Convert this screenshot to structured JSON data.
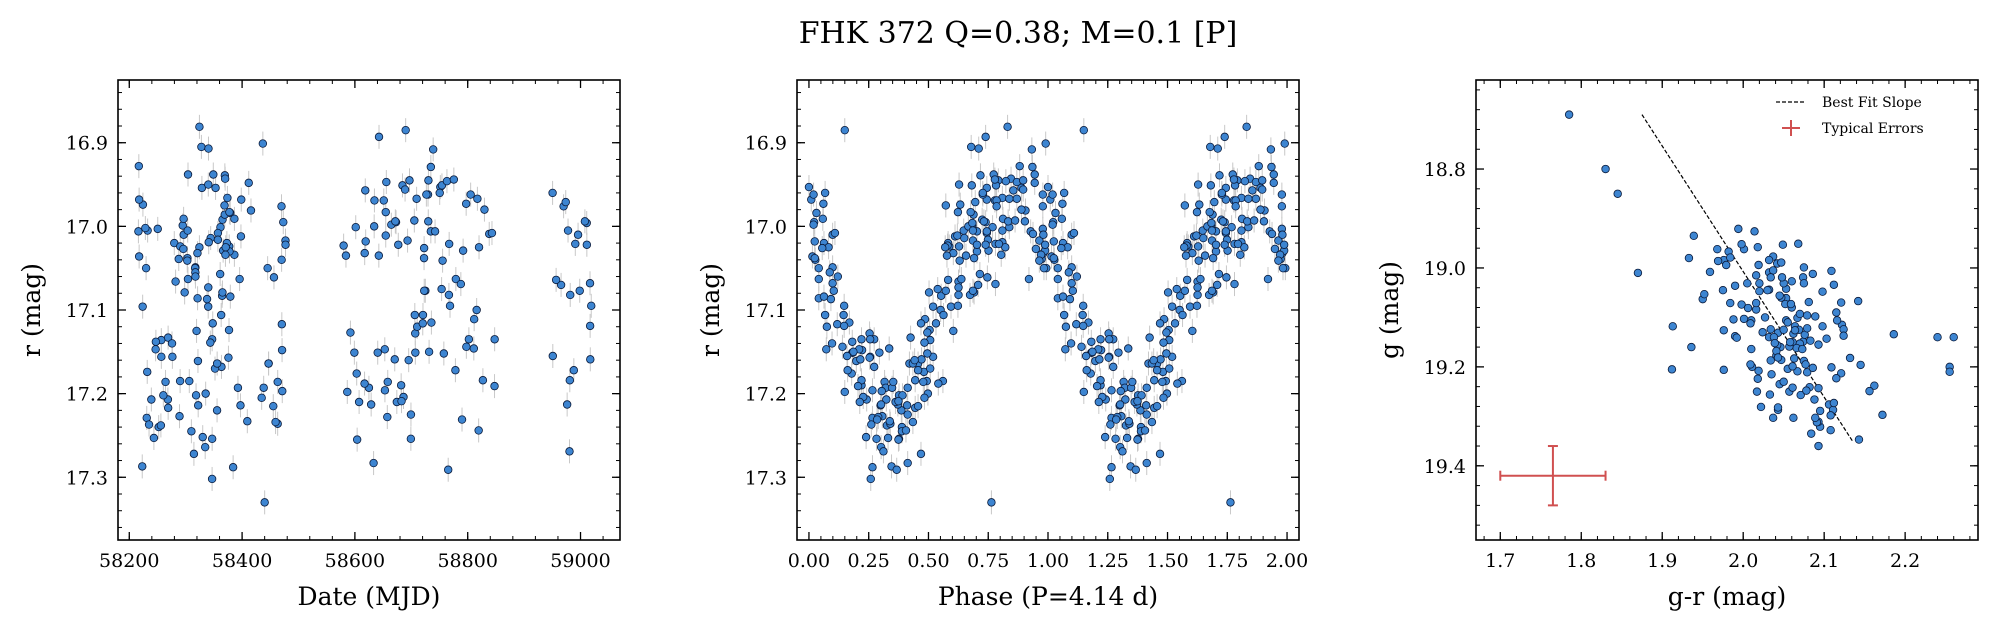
{
  "title": "FHK 372  Q=0.38; M=0.1 [P]",
  "colors": {
    "point_fill": "#3d85d1",
    "point_edge": "#0a1a3a",
    "errorbar": "#c8c8c8",
    "typical_error": "#d05050",
    "fit_line": "#000000"
  },
  "chart_data": [
    {
      "type": "scatter",
      "xlabel": "Date (MJD)",
      "ylabel": "r (mag)",
      "xlim": [
        58180,
        59070
      ],
      "ylim": [
        17.375,
        16.825
      ],
      "y_inverted": true,
      "xticks": [
        58200,
        58400,
        58600,
        58800,
        59000
      ],
      "xtick_labels": [
        "58200",
        "58400",
        "58600",
        "58800",
        "59000"
      ],
      "yticks": [
        16.9,
        17.0,
        17.1,
        17.2,
        17.3
      ],
      "ytick_labels": [
        "16.9",
        "17.0",
        "17.1",
        "17.2",
        "17.3"
      ],
      "series": [
        {
          "x": [],
          "y": []
        }
      ]
    },
    {
      "type": "scatter",
      "xlabel": "Phase (P=4.14 d)",
      "ylabel": "r (mag)",
      "xlim": [
        -0.05,
        2.05
      ],
      "ylim": [
        17.375,
        16.825
      ],
      "y_inverted": true,
      "xticks": [
        0.0,
        0.25,
        0.5,
        0.75,
        1.0,
        1.25,
        1.5,
        1.75,
        2.0
      ],
      "xtick_labels": [
        "0.00",
        "0.25",
        "0.50",
        "0.75",
        "1.00",
        "1.25",
        "1.50",
        "1.75",
        "2.00"
      ],
      "yticks": [
        16.9,
        17.0,
        17.1,
        17.2,
        17.3
      ],
      "ytick_labels": [
        "16.9",
        "17.0",
        "17.1",
        "17.2",
        "17.3"
      ],
      "period_days": 4.14,
      "series": [
        {
          "x": [],
          "y": []
        }
      ]
    },
    {
      "type": "scatter",
      "xlabel": "g-r (mag)",
      "ylabel": "g (mag)",
      "xlim": [
        1.67,
        2.29
      ],
      "ylim": [
        19.55,
        18.62
      ],
      "y_inverted": true,
      "xticks": [
        1.7,
        1.8,
        1.9,
        2.0,
        2.1,
        2.2
      ],
      "xtick_labels": [
        "1.7",
        "1.8",
        "1.9",
        "2.0",
        "2.1",
        "2.2"
      ],
      "yticks": [
        18.8,
        19.0,
        19.2,
        19.4
      ],
      "ytick_labels": [
        "18.8",
        "19.0",
        "19.2",
        "19.4"
      ],
      "legend": {
        "position": "top-right",
        "entries": [
          "Best Fit Slope",
          "Typical Errors"
        ]
      },
      "fit_line": {
        "x": [
          1.875,
          2.135
        ],
        "y": [
          18.69,
          19.35
        ]
      },
      "typical_error": {
        "x": 1.765,
        "y": 19.42,
        "xerr": 0.065,
        "yerr": 0.06
      },
      "series": [
        {
          "x": [],
          "y": []
        }
      ]
    }
  ]
}
